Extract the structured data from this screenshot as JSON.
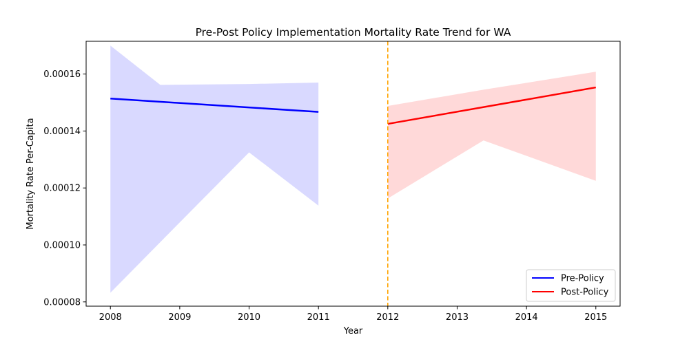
{
  "chart_data": {
    "type": "line",
    "title": "Pre-Post Policy Implementation Mortality Rate Trend for WA",
    "xlabel": "Year",
    "ylabel": "Mortality Rate Per-Capita",
    "xlim": [
      2007.65,
      2015.35
    ],
    "ylim": [
      7.85e-05,
      0.0001715
    ],
    "x_ticks": [
      2008,
      2009,
      2010,
      2011,
      2012,
      2013,
      2014,
      2015
    ],
    "x_tick_labels": [
      "2008",
      "2009",
      "2010",
      "2011",
      "2012",
      "2013",
      "2014",
      "2015"
    ],
    "y_ticks": [
      8e-05,
      0.0001,
      0.00012,
      0.00014,
      0.00016
    ],
    "y_tick_labels": [
      "0.00008",
      "0.00010",
      "0.00012",
      "0.00014",
      "0.00016"
    ],
    "grid": false,
    "legend_position": "lower-right",
    "policy_year": 2012,
    "policy_line_color": "#ffa500",
    "series": [
      {
        "name": "Pre-Policy",
        "color": "#0000ff",
        "band_color": "#0000ff",
        "line": {
          "x": [
            2008,
            2011
          ],
          "y": [
            0.0001514,
            0.0001467
          ]
        },
        "band": {
          "x": [
            2008,
            2008.72,
            2010,
            2011
          ],
          "upper": [
            0.00017,
            0.0001562,
            0.0001565,
            0.000157
          ],
          "lower": [
            8.32e-05,
            0.000101,
            0.0001325,
            0.0001138
          ]
        }
      },
      {
        "name": "Post-Policy",
        "color": "#ff0000",
        "band_color": "#ff0000",
        "line": {
          "x": [
            2012,
            2015
          ],
          "y": [
            0.0001425,
            0.0001553
          ]
        },
        "band": {
          "x": [
            2012,
            2013.38,
            2015
          ],
          "upper": [
            0.0001488,
            0.0001545,
            0.0001608
          ],
          "lower": [
            0.0001163,
            0.0001367,
            0.0001225
          ]
        }
      }
    ]
  }
}
